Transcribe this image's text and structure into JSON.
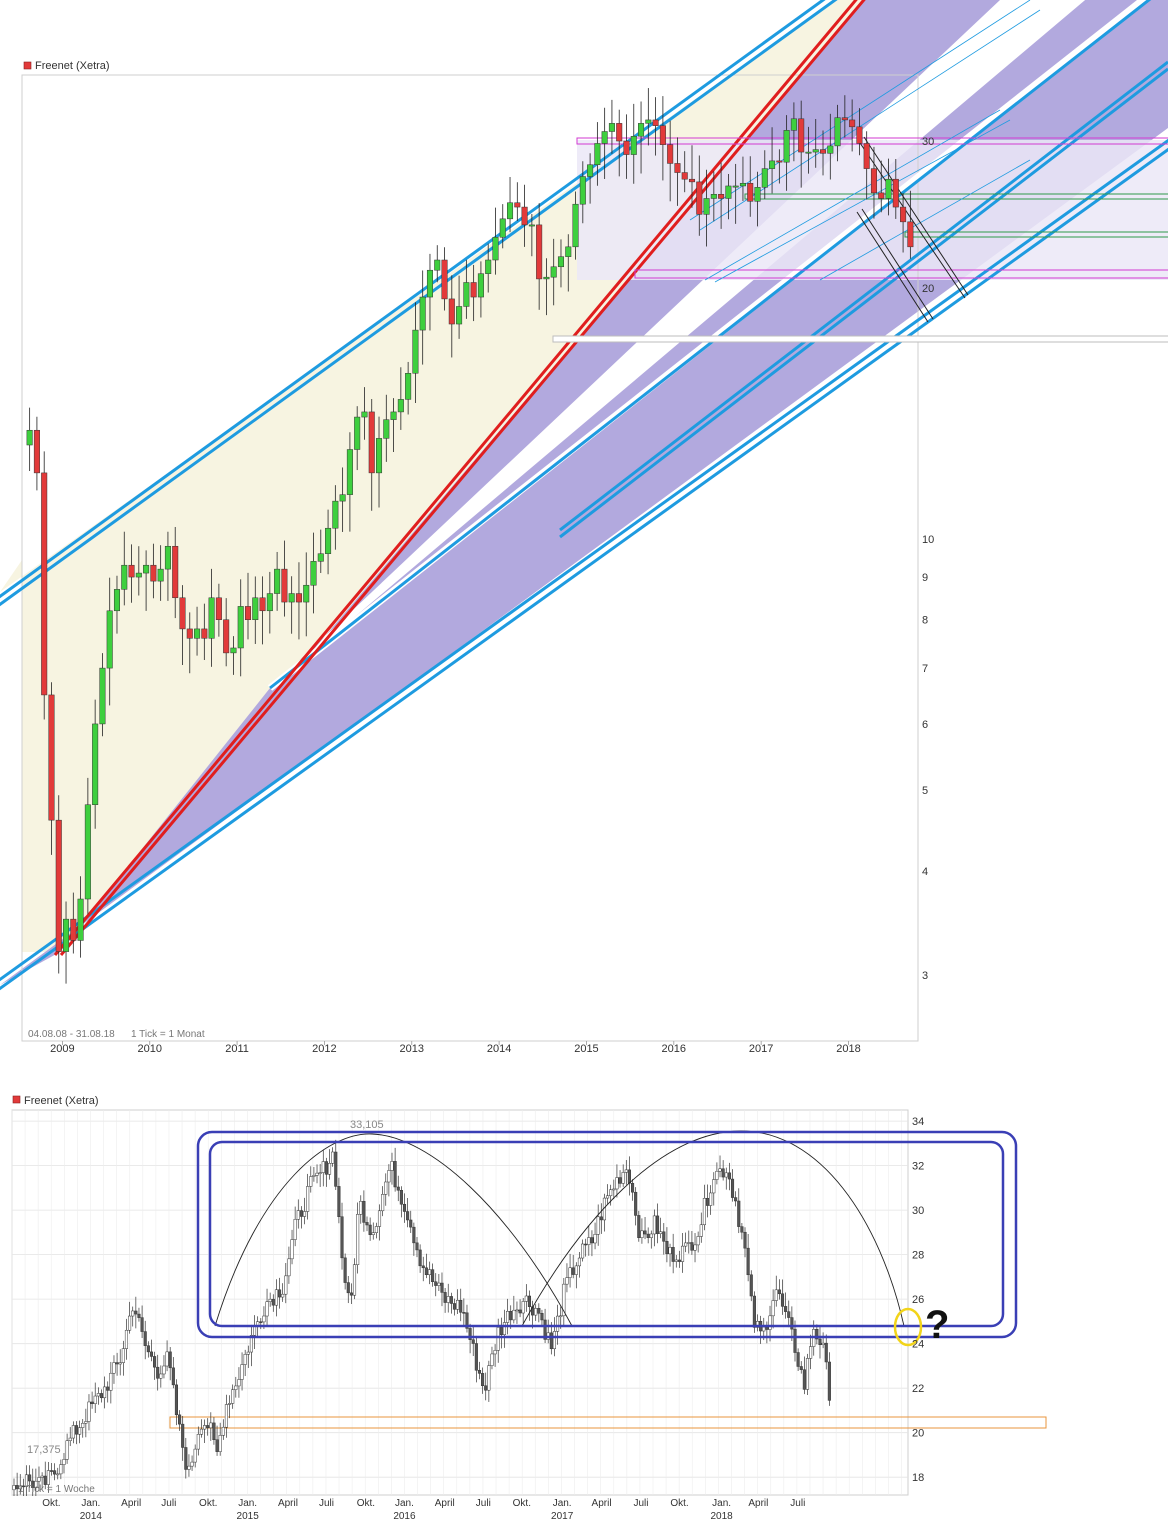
{
  "colors": {
    "up": "#3ecf3e",
    "down": "#e23a3a",
    "channel_blue": "#1e9be0",
    "channel_red": "#e01e1e",
    "fill_cream": "#f7f4e1",
    "fill_purple": "#b2a9de",
    "fill_lavender": "#ebe8f7",
    "magenta": "#d23ad2",
    "green_line": "#2f9a4a",
    "box_navy": "#3a3fb5",
    "orange": "#e8963c",
    "yellow": "#f2d41a"
  },
  "chart_data": [
    {
      "type": "candlestick",
      "title": "Freenet (Xetra)",
      "period_label": "04.08.08 - 31.08.18",
      "tick_label": "1 Tick = 1 Monat",
      "y_scale": "log",
      "ylim": [
        2.5,
        36
      ],
      "y_ticks": [
        3,
        4,
        5,
        6,
        7,
        8,
        9,
        10,
        20,
        30
      ],
      "x_labels": [
        "2009",
        "2010",
        "2011",
        "2012",
        "2013",
        "2014",
        "2015",
        "2016",
        "2017",
        "2018"
      ],
      "x_start": "2008-08",
      "x_end": "2018-08",
      "close": [
        13.5,
        12.0,
        6.5,
        4.6,
        3.2,
        3.5,
        3.3,
        3.7,
        4.8,
        6.0,
        7.0,
        8.2,
        8.7,
        9.3,
        9.0,
        9.1,
        9.3,
        8.9,
        9.2,
        9.8,
        8.5,
        7.8,
        7.6,
        7.8,
        7.6,
        8.5,
        8.0,
        7.3,
        7.4,
        8.3,
        8.0,
        8.5,
        8.2,
        8.6,
        9.2,
        8.4,
        8.6,
        8.4,
        8.8,
        9.4,
        9.6,
        10.3,
        11.1,
        11.3,
        12.8,
        14.0,
        14.2,
        12.0,
        13.2,
        13.9,
        14.2,
        14.7,
        15.8,
        17.8,
        19.5,
        21.0,
        21.6,
        19.4,
        18.1,
        19.0,
        20.3,
        19.5,
        20.8,
        21.6,
        23.0,
        24.2,
        25.3,
        25.0,
        23.8,
        23.8,
        20.5,
        20.6,
        21.2,
        21.8,
        22.4,
        25.2,
        27.2,
        28.1,
        29.8,
        30.8,
        31.5,
        30.0,
        28.9,
        30.4,
        31.5,
        31.8,
        31.3,
        29.7,
        28.2,
        27.5,
        27.0,
        26.8,
        24.5,
        25.6,
        25.9,
        25.6,
        26.5,
        26.5,
        26.7,
        25.4,
        26.4,
        27.8,
        28.4,
        28.3,
        30.9,
        31.9,
        29.1,
        29.1,
        29.3,
        29.0,
        29.6,
        32.0,
        31.8,
        31.2,
        29.8,
        27.8,
        26.0,
        25.6,
        27.0,
        25.0,
        24.0,
        22.4
      ],
      "ohlc_note": "",
      "annotations": []
    },
    {
      "type": "candlestick",
      "title": "Freenet (Xetra)",
      "tick_label": "1 Tick = 1 Woche",
      "y_scale": "linear",
      "ylim": [
        17.2,
        34.5
      ],
      "y_ticks": [
        18,
        20,
        22,
        24,
        26,
        28,
        30,
        32,
        34
      ],
      "x_labels": [
        {
          "t": "Okt.",
          "x": 0.044
        },
        {
          "t": "Jan.",
          "x": 0.088,
          "year": "2014"
        },
        {
          "t": "April",
          "x": 0.133
        },
        {
          "t": "Juli",
          "x": 0.175
        },
        {
          "t": "Okt.",
          "x": 0.219
        },
        {
          "t": "Jan.",
          "x": 0.263,
          "year": "2015"
        },
        {
          "t": "April",
          "x": 0.308
        },
        {
          "t": "Juli",
          "x": 0.351
        },
        {
          "t": "Okt.",
          "x": 0.395
        },
        {
          "t": "Jan.",
          "x": 0.438,
          "year": "2016"
        },
        {
          "t": "April",
          "x": 0.483
        },
        {
          "t": "Juli",
          "x": 0.526
        },
        {
          "t": "Okt.",
          "x": 0.569
        },
        {
          "t": "Jan.",
          "x": 0.614,
          "year": "2017"
        },
        {
          "t": "April",
          "x": 0.658
        },
        {
          "t": "Juli",
          "x": 0.702
        },
        {
          "t": "Okt.",
          "x": 0.745
        },
        {
          "t": "Jan.",
          "x": 0.792,
          "year": "2018"
        },
        {
          "t": "April",
          "x": 0.833
        },
        {
          "t": "Juli",
          "x": 0.877
        }
      ],
      "close_path": [
        [
          0.0,
          17.6
        ],
        [
          0.014,
          17.9
        ],
        [
          0.03,
          17.6
        ],
        [
          0.044,
          18.1
        ],
        [
          0.06,
          19.5
        ],
        [
          0.08,
          20.8
        ],
        [
          0.1,
          21.9
        ],
        [
          0.118,
          23.2
        ],
        [
          0.133,
          25.9
        ],
        [
          0.145,
          24.0
        ],
        [
          0.16,
          22.8
        ],
        [
          0.172,
          23.3
        ],
        [
          0.183,
          20.4
        ],
        [
          0.195,
          18.1
        ],
        [
          0.208,
          20.6
        ],
        [
          0.218,
          20.3
        ],
        [
          0.226,
          18.9
        ],
        [
          0.236,
          21.2
        ],
        [
          0.25,
          22.5
        ],
        [
          0.265,
          24.3
        ],
        [
          0.28,
          25.8
        ],
        [
          0.3,
          26.6
        ],
        [
          0.315,
          29.4
        ],
        [
          0.33,
          31.0
        ],
        [
          0.345,
          31.8
        ],
        [
          0.357,
          32.6
        ],
        [
          0.365,
          28.3
        ],
        [
          0.375,
          25.3
        ],
        [
          0.385,
          30.4
        ],
        [
          0.4,
          29.0
        ],
        [
          0.42,
          32.0
        ],
        [
          0.44,
          29.8
        ],
        [
          0.455,
          27.6
        ],
        [
          0.48,
          26.0
        ],
        [
          0.5,
          25.6
        ],
        [
          0.515,
          23.3
        ],
        [
          0.525,
          21.9
        ],
        [
          0.54,
          24.5
        ],
        [
          0.555,
          25.5
        ],
        [
          0.57,
          26.0
        ],
        [
          0.585,
          25.5
        ],
        [
          0.6,
          23.8
        ],
        [
          0.615,
          26.5
        ],
        [
          0.63,
          27.9
        ],
        [
          0.645,
          28.6
        ],
        [
          0.66,
          30.4
        ],
        [
          0.675,
          31.5
        ],
        [
          0.685,
          32.0
        ],
        [
          0.7,
          28.6
        ],
        [
          0.716,
          29.4
        ],
        [
          0.73,
          28.0
        ],
        [
          0.75,
          28.2
        ],
        [
          0.765,
          29.2
        ],
        [
          0.78,
          31.6
        ],
        [
          0.795,
          31.9
        ],
        [
          0.805,
          30.5
        ],
        [
          0.815,
          28.4
        ],
        [
          0.825,
          25.0
        ],
        [
          0.835,
          24.3
        ],
        [
          0.85,
          26.5
        ],
        [
          0.862,
          25.1
        ],
        [
          0.872,
          23.8
        ],
        [
          0.882,
          22.1
        ],
        [
          0.892,
          24.8
        ],
        [
          0.902,
          23.9
        ],
        [
          0.91,
          21.9
        ]
      ],
      "labels": [
        "33,105",
        "17,375"
      ],
      "question_mark": "?"
    }
  ]
}
